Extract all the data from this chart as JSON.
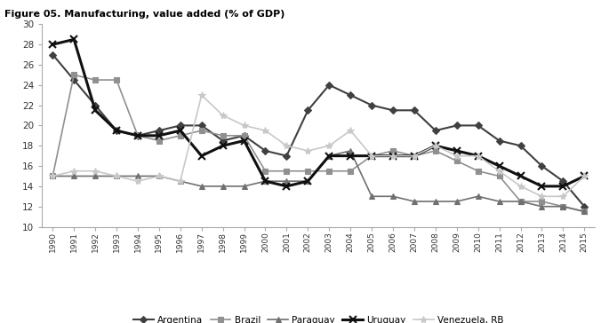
{
  "years": [
    1990,
    1991,
    1992,
    1993,
    1994,
    1995,
    1996,
    1997,
    1998,
    1999,
    2000,
    2001,
    2002,
    2003,
    2004,
    2005,
    2006,
    2007,
    2008,
    2009,
    2010,
    2011,
    2012,
    2013,
    2014,
    2015
  ],
  "Argentina": [
    27.0,
    24.5,
    22.0,
    19.5,
    19.0,
    19.5,
    20.0,
    20.0,
    18.5,
    19.0,
    17.5,
    17.0,
    21.5,
    24.0,
    23.0,
    22.0,
    21.5,
    21.5,
    19.5,
    20.0,
    20.0,
    18.5,
    18.0,
    16.0,
    14.5,
    12.0
  ],
  "Brazil": [
    15.0,
    25.0,
    24.5,
    24.5,
    19.0,
    18.5,
    19.0,
    19.5,
    19.0,
    19.0,
    15.5,
    15.5,
    15.5,
    15.5,
    15.5,
    17.0,
    17.5,
    17.0,
    17.5,
    16.5,
    15.5,
    15.0,
    12.5,
    12.5,
    12.0,
    11.5
  ],
  "Paraguay": [
    15.0,
    15.0,
    15.0,
    15.0,
    15.0,
    15.0,
    14.5,
    14.0,
    14.0,
    14.0,
    14.5,
    14.5,
    14.5,
    17.0,
    17.5,
    13.0,
    13.0,
    12.5,
    12.5,
    12.5,
    13.0,
    12.5,
    12.5,
    12.0,
    12.0,
    11.5
  ],
  "Uruguay": [
    28.0,
    28.5,
    21.5,
    19.5,
    19.0,
    19.0,
    19.5,
    17.0,
    18.0,
    18.5,
    14.5,
    14.0,
    14.5,
    17.0,
    17.0,
    17.0,
    17.0,
    17.0,
    18.0,
    17.5,
    17.0,
    16.0,
    15.0,
    14.0,
    14.0,
    15.0
  ],
  "Venezuela": [
    15.0,
    15.5,
    15.5,
    15.0,
    14.5,
    15.0,
    14.5,
    23.0,
    21.0,
    20.0,
    19.5,
    18.0,
    17.5,
    18.0,
    19.5,
    17.0,
    17.0,
    17.0,
    18.0,
    17.0,
    17.0,
    15.5,
    14.0,
    13.0,
    13.0,
    15.0
  ],
  "colors": {
    "Argentina": "#404040",
    "Brazil": "#909090",
    "Paraguay": "#707070",
    "Uruguay": "#101010",
    "Venezuela": "#c8c8c8"
  },
  "markers": {
    "Argentina": "D",
    "Brazil": "s",
    "Paraguay": "^",
    "Uruguay": "x",
    "Venezuela": "*"
  },
  "markersizes": {
    "Argentina": 4,
    "Brazil": 4,
    "Paraguay": 5,
    "Uruguay": 6,
    "Venezuela": 6
  },
  "linewidths": {
    "Argentina": 1.5,
    "Brazil": 1.2,
    "Paraguay": 1.2,
    "Uruguay": 2.2,
    "Venezuela": 1.2
  },
  "labels": [
    "Argentina",
    "Brazil",
    "Paraguay",
    "Uruguay",
    "Venezuela, RB"
  ],
  "title": "Figure 05. Manufacturing, value added (% of GDP)",
  "title_bg_color": "#e87722",
  "border_color": "#e87722",
  "ylim": [
    10,
    30
  ],
  "yticks": [
    10,
    12,
    14,
    16,
    18,
    20,
    22,
    24,
    26,
    28,
    30
  ]
}
